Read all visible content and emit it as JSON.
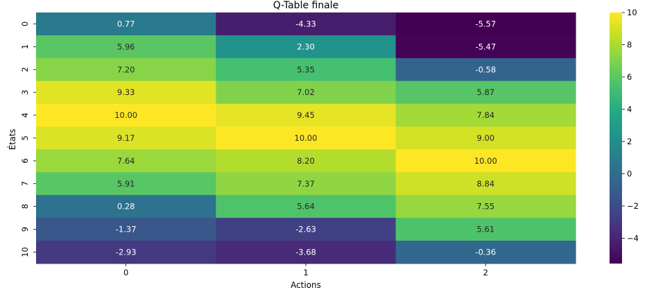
{
  "chart_data": {
    "type": "heatmap",
    "title": "Q-Table finale",
    "xlabel": "Actions",
    "ylabel": "États",
    "x_categories": [
      "0",
      "1",
      "2"
    ],
    "y_categories": [
      "0",
      "1",
      "2",
      "3",
      "4",
      "5",
      "6",
      "7",
      "8",
      "9",
      "10"
    ],
    "values": [
      [
        0.77,
        -4.33,
        -5.57
      ],
      [
        5.96,
        2.3,
        -5.47
      ],
      [
        7.2,
        5.35,
        -0.58
      ],
      [
        9.33,
        7.02,
        5.87
      ],
      [
        10.0,
        9.45,
        7.84
      ],
      [
        9.17,
        10.0,
        9.0
      ],
      [
        7.64,
        8.2,
        10.0
      ],
      [
        5.91,
        7.37,
        8.84
      ],
      [
        0.28,
        5.64,
        7.55
      ],
      [
        -1.37,
        -2.63,
        5.61
      ],
      [
        -2.93,
        -3.68,
        -0.36
      ]
    ],
    "cell_labels": [
      [
        "0.77",
        "-4.33",
        "-5.57"
      ],
      [
        "5.96",
        "2.30",
        "-5.47"
      ],
      [
        "7.20",
        "5.35",
        "-0.58"
      ],
      [
        "9.33",
        "7.02",
        "5.87"
      ],
      [
        "10.00",
        "9.45",
        "7.84"
      ],
      [
        "9.17",
        "10.00",
        "9.00"
      ],
      [
        "7.64",
        "8.20",
        "10.00"
      ],
      [
        "5.91",
        "7.37",
        "8.84"
      ],
      [
        "0.28",
        "5.64",
        "7.55"
      ],
      [
        "-1.37",
        "-2.63",
        "5.61"
      ],
      [
        "-2.93",
        "-3.68",
        "-0.36"
      ]
    ],
    "colormap": "viridis",
    "colorbar": {
      "range": [
        -5.57,
        10.0
      ],
      "ticks": [
        10,
        8,
        6,
        4,
        2,
        0,
        -2,
        -4
      ],
      "tick_labels": [
        "10",
        "8",
        "6",
        "4",
        "2",
        "0",
        "−2",
        "−4"
      ]
    },
    "grid": false,
    "legend": "right colorbar",
    "colors": {
      "text_light": "#ffffff",
      "text_dark": "#262626",
      "axis": "#000000"
    }
  }
}
